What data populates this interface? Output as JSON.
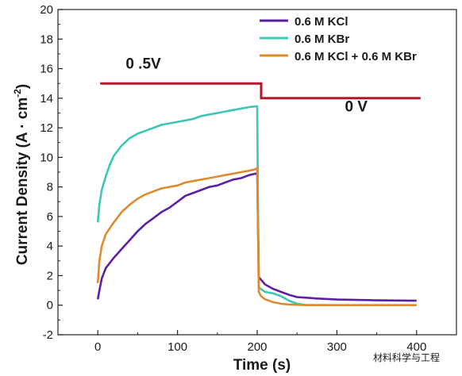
{
  "chart_data": {
    "type": "line",
    "xlabel": "Time (s)",
    "ylabel_main": "Current Density (A · cm",
    "ylabel_sup": "-2",
    "ylabel_close": ")",
    "xlim": [
      -50,
      450
    ],
    "ylim": [
      -2,
      20
    ],
    "xticks": [
      0,
      100,
      200,
      300,
      400
    ],
    "yticks": [
      -2,
      0,
      2,
      4,
      6,
      8,
      10,
      12,
      14,
      16,
      18,
      20
    ],
    "legend_position": "top-right",
    "series": [
      {
        "name": "0.6 M KCl",
        "color": "#5b1fa5",
        "x": [
          0,
          2,
          5,
          10,
          20,
          30,
          40,
          50,
          60,
          70,
          80,
          90,
          100,
          110,
          120,
          130,
          140,
          150,
          160,
          170,
          180,
          190,
          198,
          200,
          202,
          210,
          220,
          230,
          240,
          250,
          275,
          300,
          350,
          400
        ],
        "values": [
          0.4,
          1.0,
          1.8,
          2.5,
          3.2,
          3.8,
          4.4,
          5.0,
          5.5,
          5.9,
          6.3,
          6.6,
          7.0,
          7.4,
          7.6,
          7.8,
          8.0,
          8.1,
          8.3,
          8.5,
          8.6,
          8.8,
          8.9,
          8.9,
          1.9,
          1.4,
          1.1,
          0.9,
          0.7,
          0.55,
          0.45,
          0.38,
          0.33,
          0.3
        ]
      },
      {
        "name": "0.6 M KBr",
        "color": "#3cc6b4",
        "x": [
          0,
          2,
          5,
          10,
          15,
          20,
          30,
          40,
          50,
          60,
          70,
          80,
          90,
          100,
          110,
          120,
          130,
          140,
          150,
          160,
          170,
          180,
          190,
          198,
          200,
          202,
          210,
          220,
          230,
          240,
          250,
          260,
          300,
          350,
          400
        ],
        "values": [
          5.6,
          6.8,
          7.8,
          8.7,
          9.5,
          10.1,
          10.8,
          11.3,
          11.6,
          11.8,
          12.0,
          12.2,
          12.3,
          12.4,
          12.5,
          12.6,
          12.8,
          12.9,
          13.0,
          13.1,
          13.2,
          13.3,
          13.4,
          13.45,
          13.45,
          1.2,
          0.9,
          0.8,
          0.6,
          0.3,
          0.1,
          0.02,
          0.0,
          0.0,
          0.0
        ]
      },
      {
        "name": "0.6 M KCl + 0.6 M KBr",
        "color": "#e08a2e",
        "x": [
          0,
          2,
          5,
          10,
          20,
          30,
          40,
          50,
          60,
          70,
          80,
          90,
          100,
          110,
          120,
          130,
          140,
          150,
          160,
          170,
          180,
          190,
          198,
          200,
          202,
          205,
          210,
          220,
          230,
          240,
          260,
          300,
          350,
          400
        ],
        "values": [
          1.5,
          3.0,
          4.0,
          4.8,
          5.6,
          6.3,
          6.8,
          7.2,
          7.5,
          7.7,
          7.9,
          8.0,
          8.1,
          8.3,
          8.4,
          8.5,
          8.6,
          8.7,
          8.8,
          8.9,
          9.0,
          9.1,
          9.2,
          9.3,
          0.9,
          0.6,
          0.4,
          0.2,
          0.1,
          0.05,
          0.0,
          0.0,
          0.0,
          0.0
        ]
      }
    ],
    "voltage_step": {
      "color": "#b5172a",
      "x": [
        3,
        205,
        205,
        405
      ],
      "values": [
        15,
        15,
        14,
        14
      ]
    },
    "annotations": [
      {
        "text": "0 .5V",
        "x": 35,
        "y": 16
      },
      {
        "text": "0 V",
        "x": 310,
        "y": 13.1
      }
    ],
    "watermark": "材料科学与工程"
  }
}
